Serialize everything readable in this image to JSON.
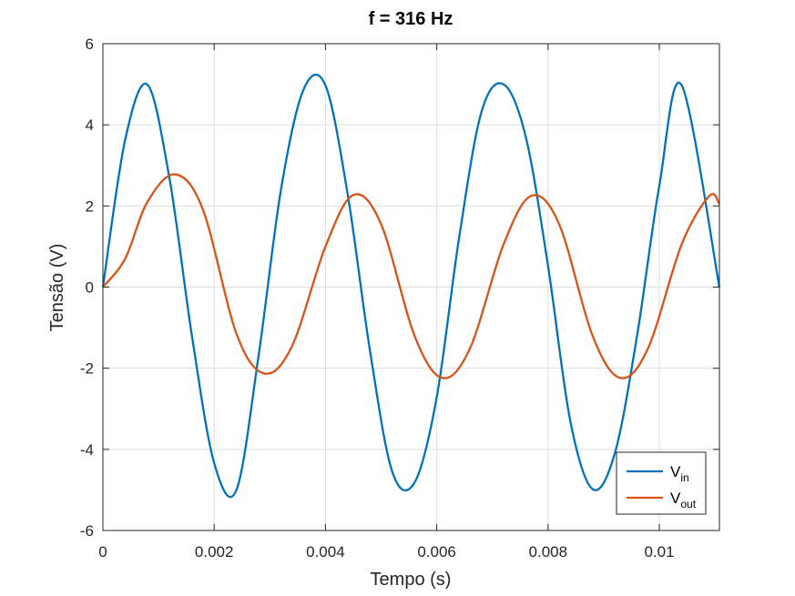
{
  "chart_data": {
    "type": "line",
    "title": "f = 316 Hz",
    "xlabel": "Tempo (s)",
    "ylabel": "Tensão (V)",
    "xlim": [
      0,
      0.01108
    ],
    "ylim": [
      -6,
      6
    ],
    "xticks": [
      0,
      0.002,
      0.004,
      0.006,
      0.008,
      0.01
    ],
    "xtick_labels": [
      "0",
      "0.002",
      "0.004",
      "0.006",
      "0.008",
      "0.01"
    ],
    "yticks": [
      -6,
      -4,
      -2,
      0,
      2,
      4,
      6
    ],
    "ytick_labels": [
      "-6",
      "-4",
      "-2",
      "0",
      "2",
      "4",
      "6"
    ],
    "grid": true,
    "legend_position": "bottom-right",
    "series": [
      {
        "name": "V_in",
        "legend_main": "V",
        "legend_sub": "in",
        "color": "#0072BD",
        "x": [
          0,
          0.0004,
          0.0008,
          0.0012,
          0.0016,
          0.002,
          0.0024,
          0.0028,
          0.0032,
          0.0036,
          0.004,
          0.0044,
          0.0048,
          0.0052,
          0.0056,
          0.006,
          0.0064,
          0.0068,
          0.0072,
          0.0076,
          0.008,
          0.0084,
          0.0088,
          0.0092,
          0.0096,
          0.01,
          0.0104,
          0.01108
        ],
        "y": [
          0,
          3.63,
          4.99,
          2.65,
          -1.2,
          -4.34,
          -5.0,
          -1.67,
          2.4,
          4.85,
          4.97,
          2.28,
          -1.57,
          -4.55,
          -4.82,
          -2.71,
          1.2,
          4.3,
          5.0,
          3.7,
          0.52,
          -3.3,
          -4.98,
          -4.1,
          -1.2,
          2.5,
          4.98,
          0
        ]
      },
      {
        "name": "V_out",
        "legend_main": "V",
        "legend_sub": "out",
        "color": "#D95319",
        "x": [
          0,
          0.0004,
          0.0008,
          0.0013,
          0.0018,
          0.0024,
          0.0029,
          0.0034,
          0.004,
          0.0045,
          0.005,
          0.0056,
          0.0061,
          0.0066,
          0.0072,
          0.0077,
          0.0082,
          0.0088,
          0.0093,
          0.0098,
          0.0104,
          0.0109,
          0.01108
        ],
        "y": [
          0,
          0.7,
          2.1,
          2.78,
          1.9,
          -1.15,
          -2.13,
          -1.45,
          1.0,
          2.27,
          1.55,
          -1.2,
          -2.24,
          -1.5,
          1.05,
          2.25,
          1.55,
          -1.2,
          -2.24,
          -1.5,
          1.05,
          2.25,
          2.05
        ]
      }
    ]
  }
}
